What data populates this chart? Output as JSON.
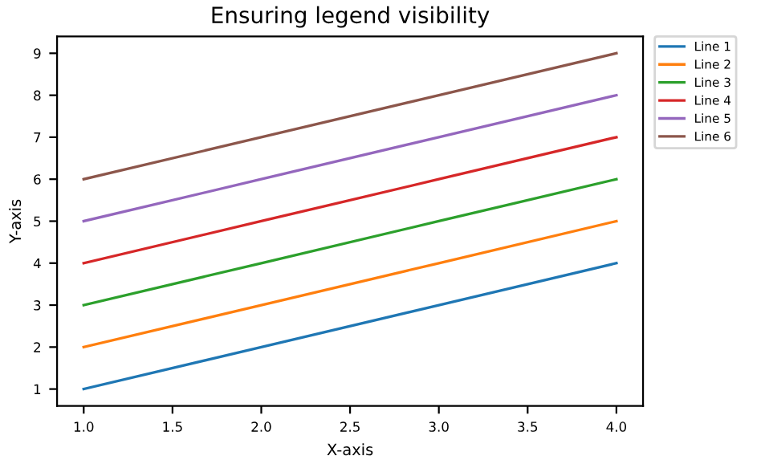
{
  "chart_data": {
    "type": "line",
    "title": "Ensuring legend visibility",
    "xlabel": "X-axis",
    "ylabel": "Y-axis",
    "x": [
      1,
      2,
      3,
      4
    ],
    "series": [
      {
        "name": "Line 1",
        "color": "#1f77b4",
        "values": [
          1,
          2,
          3,
          4
        ]
      },
      {
        "name": "Line 2",
        "color": "#ff7f0e",
        "values": [
          2,
          3,
          4,
          5
        ]
      },
      {
        "name": "Line 3",
        "color": "#2ca02c",
        "values": [
          3,
          4,
          5,
          6
        ]
      },
      {
        "name": "Line 4",
        "color": "#d62728",
        "values": [
          4,
          5,
          6,
          7
        ]
      },
      {
        "name": "Line 5",
        "color": "#9467bd",
        "values": [
          5,
          6,
          7,
          8
        ]
      },
      {
        "name": "Line 6",
        "color": "#8c564b",
        "values": [
          6,
          7,
          8,
          9
        ]
      }
    ],
    "xlim": [
      0.85,
      4.15
    ],
    "ylim": [
      0.6,
      9.4
    ],
    "xticks": [
      {
        "value": 1,
        "label": "1.0"
      },
      {
        "value": 1.5,
        "label": "1.5"
      },
      {
        "value": 2,
        "label": "2.0"
      },
      {
        "value": 2.5,
        "label": "2.5"
      },
      {
        "value": 3,
        "label": "3.0"
      },
      {
        "value": 3.5,
        "label": "3.5"
      },
      {
        "value": 4,
        "label": "4.0"
      }
    ],
    "yticks": [
      1,
      2,
      3,
      4,
      5,
      6,
      7,
      8,
      9
    ],
    "legend": "top right",
    "grid": false,
    "marker": "none",
    "line_style": "solid"
  }
}
